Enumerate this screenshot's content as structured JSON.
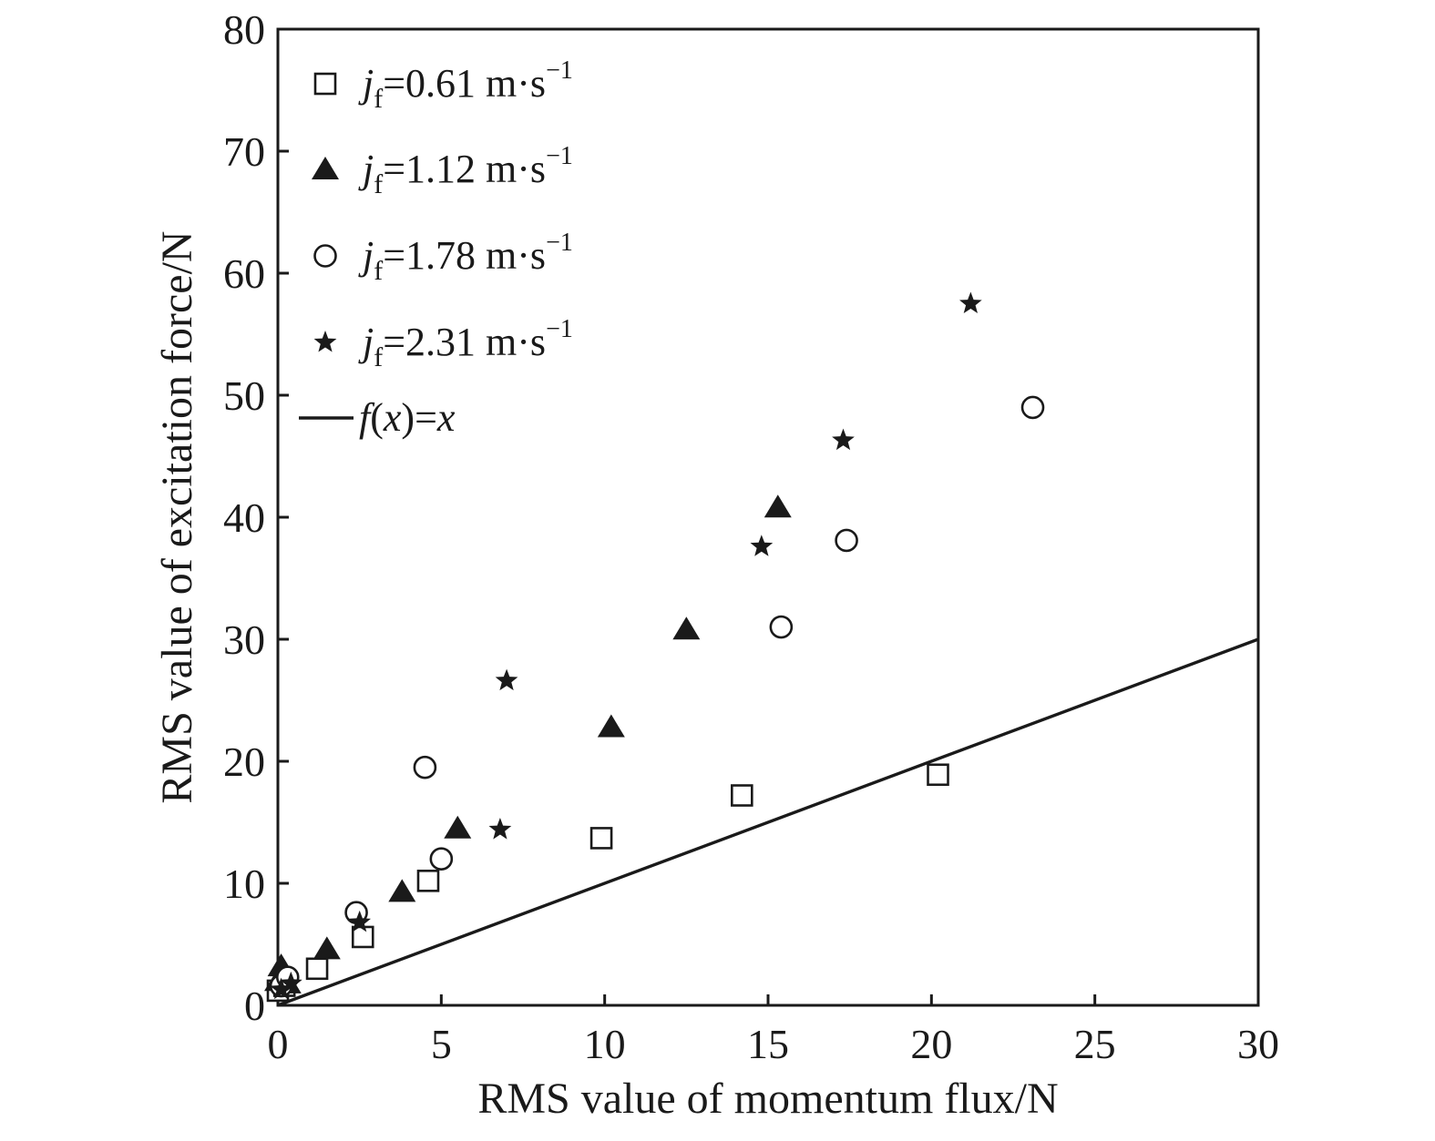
{
  "chart_data": {
    "type": "scatter",
    "xlabel": "RMS value of momentum flux/N",
    "ylabel": "RMS value of excitation force/N",
    "xlim": [
      0,
      30
    ],
    "ylim": [
      0,
      80
    ],
    "xticks": [
      0,
      5,
      10,
      15,
      20,
      25,
      30
    ],
    "yticks": [
      0,
      10,
      20,
      30,
      40,
      50,
      60,
      70,
      80
    ],
    "grid": false,
    "legend_position": "top-left",
    "series": [
      {
        "legend": {
          "var": "j",
          "sub": "f",
          "rest": "=0.61 m·s",
          "sup": "−1"
        },
        "marker": "open-square",
        "x": [
          0.0,
          0.2,
          1.2,
          2.6,
          4.6,
          9.9,
          14.2,
          20.2
        ],
        "y": [
          1.2,
          1.6,
          3.0,
          5.6,
          10.2,
          13.7,
          17.2,
          18.9
        ]
      },
      {
        "legend": {
          "var": "j",
          "sub": "f",
          "rest": "=1.12 m·s",
          "sup": "−1"
        },
        "marker": "filled-triangle",
        "x": [
          0.0,
          0.1,
          0.3,
          1.5,
          3.8,
          5.5,
          10.2,
          12.5,
          15.3
        ],
        "y": [
          2.0,
          3.2,
          1.8,
          4.6,
          9.3,
          14.5,
          22.8,
          30.8,
          40.8
        ]
      },
      {
        "legend": {
          "var": "j",
          "sub": "f",
          "rest": "=1.78 m·s",
          "sup": "−1"
        },
        "marker": "open-circle",
        "x": [
          0.1,
          0.3,
          2.4,
          4.5,
          5.0,
          15.4,
          17.4,
          23.1
        ],
        "y": [
          1.6,
          2.3,
          7.6,
          19.5,
          12.0,
          31.0,
          38.1,
          49.0
        ]
      },
      {
        "legend": {
          "var": "j",
          "sub": "f",
          "rest": "=2.31 m·s",
          "sup": "−1"
        },
        "marker": "filled-star",
        "x": [
          0.1,
          0.4,
          2.5,
          6.8,
          7.0,
          14.8,
          17.3,
          21.2
        ],
        "y": [
          1.3,
          1.8,
          6.8,
          14.4,
          26.6,
          37.6,
          46.3,
          57.5
        ]
      }
    ],
    "line": {
      "legend": {
        "fn": "f",
        "open": "(",
        "var": "x",
        "mid": ")=",
        "var2": "x"
      },
      "x": [
        0,
        30
      ],
      "y": [
        0,
        30
      ]
    }
  }
}
